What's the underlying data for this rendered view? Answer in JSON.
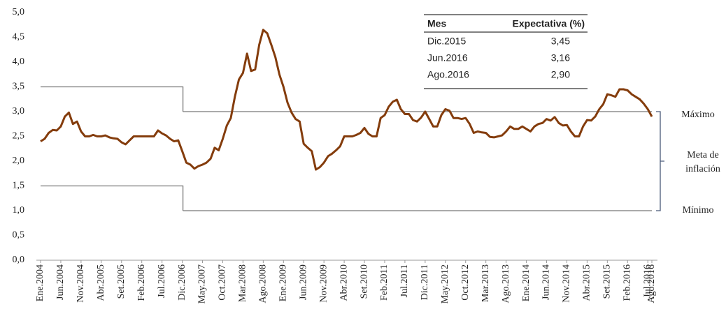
{
  "chart_data": {
    "type": "line",
    "categories": [
      "Ene.2004",
      null,
      null,
      null,
      null,
      "Jun.2004",
      null,
      null,
      null,
      null,
      "Nov.2004",
      null,
      null,
      null,
      null,
      "Abr.2005",
      null,
      null,
      null,
      null,
      "Set.2005",
      null,
      null,
      null,
      null,
      "Feb.2006",
      null,
      null,
      null,
      null,
      "Jul.2006",
      null,
      null,
      null,
      null,
      "Dic.2006",
      null,
      null,
      null,
      null,
      "May.2007",
      null,
      null,
      null,
      null,
      "Oct.2007",
      null,
      null,
      null,
      null,
      "Mar.2008",
      null,
      null,
      null,
      null,
      "Ago.2008",
      null,
      null,
      null,
      null,
      "Ene.2009",
      null,
      null,
      null,
      null,
      "Jun.2009",
      null,
      null,
      null,
      null,
      "Nov.2009",
      null,
      null,
      null,
      null,
      "Abr.2010",
      null,
      null,
      null,
      null,
      "Set.2010",
      null,
      null,
      null,
      null,
      "Feb.2011",
      null,
      null,
      null,
      null,
      "Jul.2011",
      null,
      null,
      null,
      null,
      "Dic.2011",
      null,
      null,
      null,
      null,
      "May.2012",
      null,
      null,
      null,
      null,
      "Oct.2012",
      null,
      null,
      null,
      null,
      "Mar.2013",
      null,
      null,
      null,
      null,
      "Ago.2013",
      null,
      null,
      null,
      null,
      "Ene.2014",
      null,
      null,
      null,
      null,
      "Jun.2014",
      null,
      null,
      null,
      null,
      "Nov.2014",
      null,
      null,
      null,
      null,
      "Abr.2015",
      null,
      null,
      null,
      null,
      "Set.2015",
      null,
      null,
      null,
      null,
      "Feb.2016",
      null,
      null,
      null,
      null,
      "Jul.2016",
      "Ago.2016"
    ],
    "series": [
      {
        "color": "#843c0c",
        "values": [
          2.4,
          2.45,
          2.57,
          2.63,
          2.62,
          2.7,
          2.9,
          2.98,
          2.75,
          2.8,
          2.6,
          2.5,
          2.5,
          2.53,
          2.5,
          2.5,
          2.52,
          2.48,
          2.46,
          2.45,
          2.38,
          2.34,
          2.42,
          2.5,
          2.5,
          2.5,
          2.5,
          2.5,
          2.5,
          2.62,
          2.56,
          2.52,
          2.45,
          2.4,
          2.42,
          2.2,
          1.97,
          1.93,
          1.85,
          1.9,
          1.93,
          1.97,
          2.05,
          2.27,
          2.22,
          2.45,
          2.72,
          2.87,
          3.3,
          3.65,
          3.78,
          4.17,
          3.82,
          3.85,
          4.35,
          4.65,
          4.58,
          4.35,
          4.1,
          3.75,
          3.5,
          3.18,
          2.98,
          2.85,
          2.8,
          2.35,
          2.27,
          2.2,
          1.83,
          1.88,
          1.97,
          2.1,
          2.15,
          2.22,
          2.3,
          2.5,
          2.5,
          2.5,
          2.53,
          2.57,
          2.67,
          2.55,
          2.5,
          2.5,
          2.87,
          2.93,
          3.1,
          3.2,
          3.24,
          3.05,
          2.95,
          2.95,
          2.83,
          2.8,
          2.88,
          3.0,
          2.85,
          2.7,
          2.7,
          2.93,
          3.05,
          3.02,
          2.87,
          2.87,
          2.85,
          2.87,
          2.75,
          2.57,
          2.6,
          2.58,
          2.57,
          2.49,
          2.48,
          2.5,
          2.52,
          2.6,
          2.7,
          2.65,
          2.65,
          2.7,
          2.65,
          2.6,
          2.7,
          2.75,
          2.77,
          2.85,
          2.82,
          2.89,
          2.77,
          2.72,
          2.73,
          2.6,
          2.5,
          2.5,
          2.7,
          2.83,
          2.82,
          2.9,
          3.05,
          3.15,
          3.35,
          3.33,
          3.3,
          3.45,
          3.45,
          3.43,
          3.35,
          3.3,
          3.25,
          3.16,
          3.05,
          2.9
        ]
      }
    ],
    "ylim": [
      0,
      5
    ],
    "yticks": [
      {
        "value": 0,
        "label": "0,0"
      },
      {
        "value": 0.5,
        "label": "0,5"
      },
      {
        "value": 1,
        "label": "1,0"
      },
      {
        "value": 1.5,
        "label": "1,5"
      },
      {
        "value": 2,
        "label": "2,0"
      },
      {
        "value": 2.5,
        "label": "2,5"
      },
      {
        "value": 3,
        "label": "3,0"
      },
      {
        "value": 3.5,
        "label": "3,5"
      },
      {
        "value": 4,
        "label": "4,0"
      },
      {
        "value": 4.5,
        "label": "4,5"
      },
      {
        "value": 5,
        "label": "5,0"
      }
    ],
    "target": {
      "max": 3,
      "min": 1,
      "previous_max": 3.5,
      "previous_min": 1.5,
      "change_at": "Dic.2006",
      "max_label": "Máximo",
      "min_label": "Mínimo",
      "label": [
        "Meta de",
        "inflación"
      ]
    },
    "table": {
      "header": [
        "Mes",
        "Expectativa (%)"
      ],
      "rows": [
        [
          "Dic.2015",
          "3,45"
        ],
        [
          "Jun.2016",
          "3,16"
        ],
        [
          "Ago.2016",
          "2,90"
        ]
      ]
    }
  }
}
